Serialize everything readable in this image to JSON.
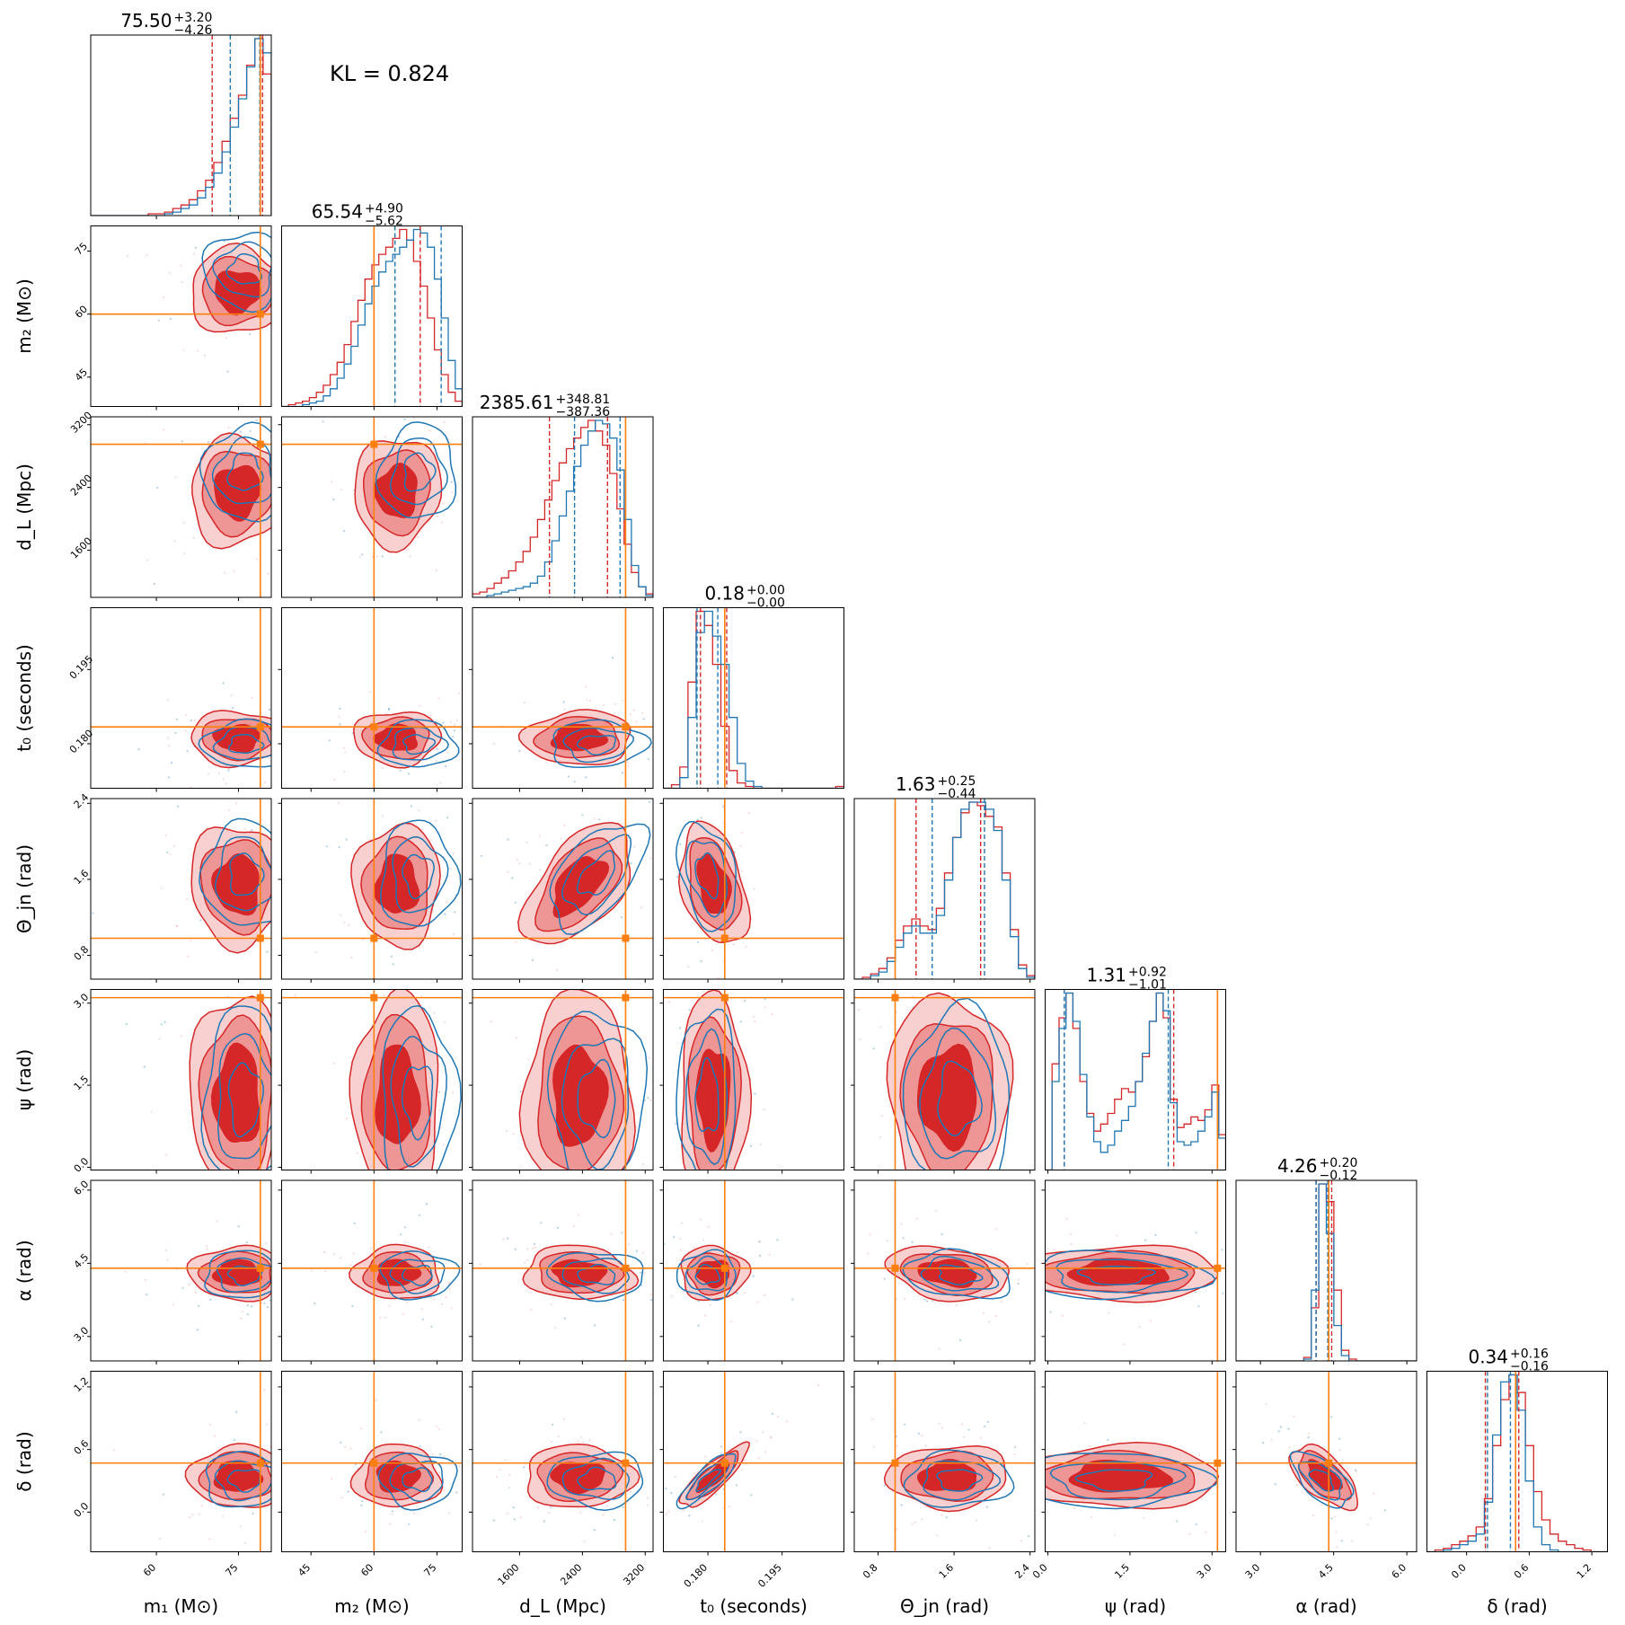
{
  "chart_data": {
    "type": "corner",
    "annotation": "KL = 0.824",
    "parameters": [
      {
        "key": "m1",
        "label": "m₁ (M⊙)",
        "range": [
          48,
          81
        ],
        "ticks": [
          60,
          75
        ],
        "tick_labels": [
          "60",
          "75"
        ],
        "truth": 79,
        "title": {
          "median": "75.50",
          "plus": "+3.20",
          "minus": "−4.26"
        },
        "red_quantiles": [
          70.2,
          79.4
        ],
        "blue_quantiles": [
          73.5,
          78.9
        ]
      },
      {
        "key": "m2",
        "label": "m₂ (M⊙)",
        "range": [
          38,
          81
        ],
        "ticks": [
          45,
          60,
          75
        ],
        "tick_labels": [
          "45",
          "60",
          "75"
        ],
        "truth": 60,
        "title": {
          "median": "65.54",
          "plus": "+4.90",
          "minus": "−5.62"
        },
        "red_quantiles": [
          60,
          71
        ],
        "blue_quantiles": [
          65,
          76
        ]
      },
      {
        "key": "dL",
        "label": "d_L (Mpc)",
        "range": [
          1000,
          3300
        ],
        "ticks": [
          1600,
          2400,
          3200
        ],
        "tick_labels": [
          "1600",
          "2400",
          "3200"
        ],
        "truth": 2950,
        "title": {
          "median": "2385.61",
          "plus": "+348.81",
          "minus": "−387.36"
        },
        "red_quantiles": [
          1980,
          2720
        ],
        "blue_quantiles": [
          2300,
          2880
        ]
      },
      {
        "key": "t0",
        "label": "t₀ (seconds)",
        "range": [
          0.171,
          0.2075
        ],
        "ticks": [
          0.18,
          0.195
        ],
        "tick_labels": [
          "0.180",
          "0.195"
        ],
        "truth": 0.1834,
        "title": {
          "median": "0.18",
          "plus": "+0.00",
          "minus": "−0.00"
        },
        "red_quantiles": [
          0.1785,
          0.1838
        ],
        "blue_quantiles": [
          0.1778,
          0.182
        ]
      },
      {
        "key": "theta_jn",
        "label": "Θ_jn (rad)",
        "range": [
          0.55,
          2.45
        ],
        "ticks": [
          0.8,
          1.6,
          2.4
        ],
        "tick_labels": [
          "0.8",
          "1.6",
          "2.4"
        ],
        "truth": 0.98,
        "title": {
          "median": "1.63",
          "plus": "+0.25",
          "minus": "−0.44"
        },
        "red_quantiles": [
          1.2,
          1.88
        ],
        "blue_quantiles": [
          1.37,
          1.92
        ]
      },
      {
        "key": "psi",
        "label": "ψ (rad)",
        "range": [
          -0.05,
          3.25
        ],
        "ticks": [
          0.0,
          1.5,
          3.0
        ],
        "tick_labels": [
          "0.0",
          "1.5",
          "3.0"
        ],
        "truth": 3.1,
        "title": {
          "median": "1.31",
          "plus": "+0.92",
          "minus": "−1.01"
        },
        "red_quantiles": [
          0.3,
          2.3
        ],
        "blue_quantiles": [
          0.3,
          2.2
        ]
      },
      {
        "key": "alpha",
        "label": "α (rad)",
        "range": [
          2.5,
          6.2
        ],
        "ticks": [
          3.0,
          4.5,
          6.0
        ],
        "tick_labels": [
          "3.0",
          "4.5",
          "6.0"
        ],
        "truth": 4.4,
        "title": {
          "median": "4.26",
          "plus": "+0.20",
          "minus": "−0.12"
        },
        "red_quantiles": [
          4.14,
          4.46
        ],
        "blue_quantiles": [
          4.14,
          4.38
        ]
      },
      {
        "key": "delta",
        "label": "δ (rad)",
        "range": [
          -0.38,
          1.35
        ],
        "ticks": [
          0.0,
          0.6,
          1.2
        ],
        "tick_labels": [
          "0.0",
          "0.6",
          "1.2"
        ],
        "truth": 0.47,
        "title": {
          "median": "0.34",
          "plus": "+0.16",
          "minus": "−0.16"
        },
        "red_quantiles": [
          0.18,
          0.5
        ],
        "blue_quantiles": [
          0.2,
          0.42
        ]
      }
    ],
    "colors": {
      "red": "#d62728",
      "red_mid": "#ee9596",
      "red_light": "#f8d0d0",
      "blue": "#1f77b4",
      "truth": "#ff7f0e"
    },
    "histograms": {
      "m1": [
        [
          0,
          0,
          0,
          0,
          0,
          0,
          0,
          1,
          1,
          2,
          4,
          6,
          9,
          14,
          20,
          30,
          42,
          55,
          68,
          85,
          100,
          80
        ],
        [
          0,
          0,
          0,
          0,
          0,
          0,
          0,
          0,
          0,
          1,
          2,
          4,
          6,
          10,
          16,
          24,
          36,
          50,
          66,
          84,
          100,
          92
        ]
      ],
      "m2": [
        [
          0,
          1,
          2,
          3,
          5,
          8,
          12,
          18,
          25,
          35,
          48,
          60,
          72,
          80,
          86,
          90,
          95,
          100,
          94,
          82,
          68,
          50,
          32,
          18,
          8,
          3
        ],
        [
          0,
          0,
          0,
          1,
          2,
          3,
          6,
          10,
          16,
          24,
          34,
          46,
          58,
          68,
          76,
          82,
          86,
          90,
          94,
          100,
          98,
          90,
          72,
          50,
          26,
          10
        ]
      ],
      "dL": [
        [
          2,
          3,
          5,
          8,
          11,
          15,
          20,
          26,
          34,
          44,
          55,
          66,
          76,
          84,
          90,
          96,
          100,
          94,
          86,
          70,
          50,
          30,
          14,
          6,
          2
        ],
        [
          0,
          0,
          1,
          2,
          3,
          4,
          5,
          6,
          8,
          12,
          20,
          32,
          46,
          60,
          74,
          86,
          94,
          100,
          98,
          90,
          72,
          44,
          18,
          6,
          1
        ]
      ],
      "t0": [
        [
          0,
          2,
          12,
          60,
          100,
          92,
          70,
          35,
          10,
          3,
          1,
          0,
          0,
          0,
          0,
          0,
          0,
          0,
          0,
          0,
          0,
          1
        ],
        [
          0,
          0,
          6,
          40,
          88,
          100,
          86,
          70,
          40,
          14,
          4,
          1,
          0,
          0,
          0,
          0,
          0,
          0,
          0,
          0,
          0,
          0
        ]
      ],
      "theta_jn": [
        [
          0,
          1,
          3,
          6,
          12,
          22,
          30,
          34,
          30,
          28,
          40,
          60,
          80,
          94,
          100,
          98,
          92,
          86,
          60,
          28,
          8,
          2
        ],
        [
          0,
          0,
          2,
          4,
          10,
          18,
          26,
          30,
          26,
          26,
          36,
          56,
          80,
          96,
          100,
          100,
          96,
          84,
          56,
          24,
          6,
          1
        ]
      ],
      "psi": [
        [
          0,
          60,
          86,
          100,
          80,
          50,
          32,
          22,
          26,
          32,
          40,
          46,
          44,
          50,
          64,
          84,
          100,
          86,
          40,
          24,
          26,
          30,
          28,
          34,
          48,
          20
        ],
        [
          0,
          50,
          80,
          100,
          84,
          54,
          30,
          16,
          10,
          14,
          22,
          28,
          36,
          50,
          66,
          84,
          100,
          90,
          38,
          16,
          14,
          16,
          22,
          30,
          44,
          18
        ]
      ],
      "alpha": [
        [
          0,
          0,
          0,
          0,
          0,
          0,
          0,
          0,
          0,
          2,
          30,
          100,
          90,
          40,
          6,
          1,
          0,
          0,
          0,
          0,
          0,
          0,
          0,
          0
        ],
        [
          0,
          0,
          0,
          0,
          0,
          0,
          0,
          0,
          0,
          1,
          40,
          100,
          72,
          20,
          3,
          0,
          0,
          0,
          0,
          0,
          0,
          0,
          0,
          0
        ]
      ],
      "delta": [
        [
          0,
          1,
          2,
          4,
          6,
          9,
          14,
          30,
          60,
          86,
          100,
          90,
          60,
          34,
          18,
          10,
          6,
          4,
          2,
          1,
          0,
          0
        ],
        [
          0,
          0,
          1,
          2,
          4,
          6,
          10,
          28,
          66,
          96,
          100,
          80,
          40,
          14,
          4,
          1,
          0,
          0,
          0,
          0,
          0,
          0
        ]
      ]
    },
    "correlations": [
      [],
      [
        0.0
      ],
      [
        0.05,
        0.05
      ],
      [
        0.0,
        0.0,
        0.05
      ],
      [
        -0.05,
        0.0,
        0.55,
        -0.35
      ],
      [
        0.0,
        0.0,
        0.0,
        0.0,
        0.0
      ],
      [
        0.0,
        0.0,
        -0.1,
        0.0,
        -0.25,
        0.0
      ],
      [
        0.0,
        0.0,
        0.0,
        0.85,
        0.05,
        0.0,
        -0.6
      ]
    ]
  }
}
